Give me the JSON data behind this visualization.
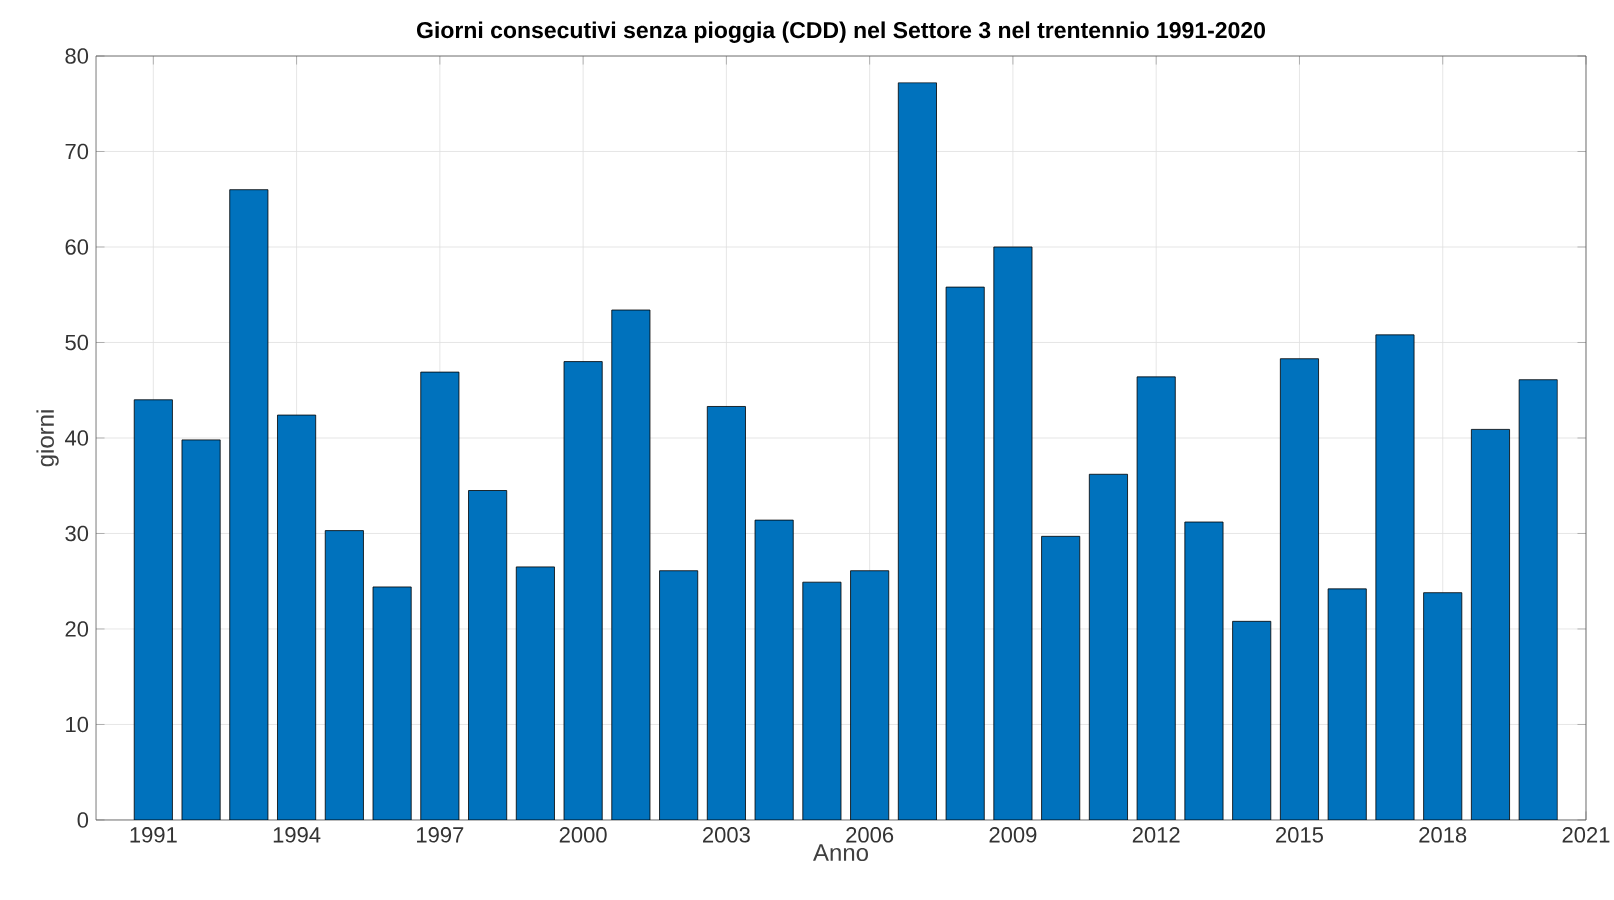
{
  "chart_data": {
    "type": "bar",
    "title": "Giorni consecutivi senza pioggia (CDD) nel Settore 3 nel trentennio 1991-2020",
    "xlabel": "Anno",
    "ylabel": "giorni",
    "x": [
      1991,
      1992,
      1993,
      1994,
      1995,
      1996,
      1997,
      1998,
      1999,
      2000,
      2001,
      2002,
      2003,
      2004,
      2005,
      2006,
      2007,
      2008,
      2009,
      2010,
      2011,
      2012,
      2013,
      2014,
      2015,
      2016,
      2017,
      2018,
      2019,
      2020
    ],
    "values": [
      44,
      39.8,
      66,
      42.4,
      30.3,
      24.4,
      46.9,
      34.5,
      26.5,
      48,
      53.4,
      26.1,
      43.3,
      31.4,
      24.9,
      26.1,
      77.2,
      55.8,
      60,
      29.7,
      36.2,
      46.4,
      31.2,
      20.8,
      48.3,
      24.2,
      50.8,
      23.8,
      40.9,
      46.1
    ],
    "color": "#0072bd",
    "xlim": [
      1989.8,
      2021
    ],
    "xticks": [
      1991,
      1994,
      1997,
      2000,
      2003,
      2006,
      2009,
      2012,
      2015,
      2018,
      2021
    ],
    "ylim": [
      0,
      80
    ],
    "yticks": [
      0,
      10,
      20,
      30,
      40,
      50,
      60,
      70,
      80
    ],
    "grid": true
  }
}
